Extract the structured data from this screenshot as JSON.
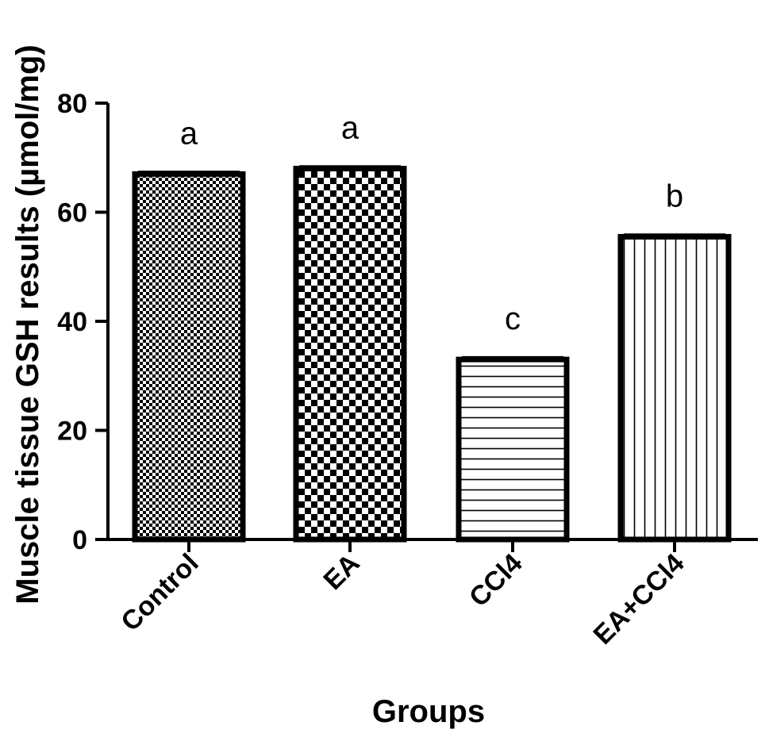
{
  "chart_data": {
    "type": "bar",
    "categories": [
      "Control",
      "EA",
      "CCl4",
      "EA+CCl4"
    ],
    "values": [
      67,
      68,
      33,
      55.5
    ],
    "errors": [
      0.4,
      0.4,
      0.4,
      0.4
    ],
    "significance": [
      "a",
      "a",
      "c",
      "b"
    ],
    "patterns": [
      "fine-checker",
      "coarse-checker",
      "horizontal-lines",
      "vertical-lines"
    ],
    "xlabel": "Groups",
    "ylabel": "Muscle tissue GSH results (µmol/mg)",
    "ylim": [
      0,
      80
    ],
    "yticks": [
      0,
      20,
      40,
      60,
      80
    ],
    "grid": false,
    "colors": {
      "bar_stroke": "#000000",
      "bar_fill": "#ffffff",
      "axis": "#000000"
    }
  }
}
